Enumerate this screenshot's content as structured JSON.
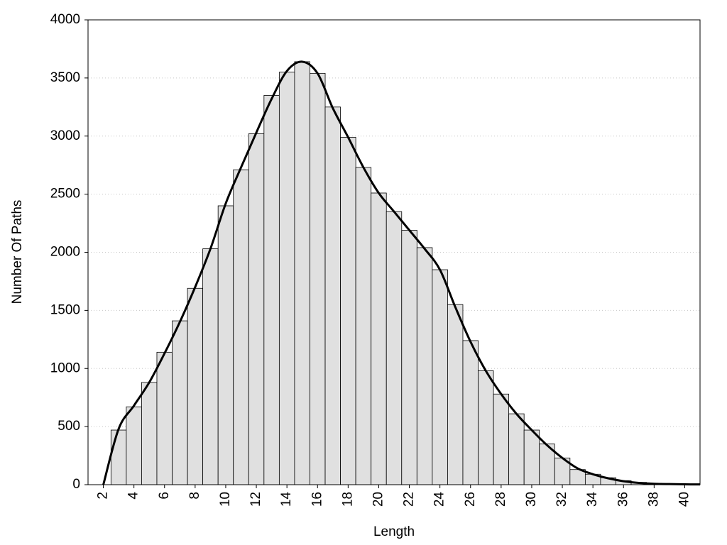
{
  "chart_data": {
    "type": "histogram",
    "x_label": "Length",
    "y_label": "Number Of Paths",
    "bins": [
      2.5,
      3.5,
      4.5,
      5.5,
      6.5,
      7.5,
      8.5,
      9.5,
      10.5,
      11.5,
      12.5,
      13.5,
      14.5,
      15.5,
      16.5,
      17.5,
      18.5,
      19.5,
      20.5,
      21.5,
      22.5,
      23.5,
      24.5,
      25.5,
      26.5,
      27.5,
      28.5,
      29.5,
      30.5,
      31.5,
      32.5,
      33.5,
      34.5,
      35.5,
      36.5,
      37.5,
      38.5,
      39.5,
      40.5
    ],
    "values": [
      470,
      670,
      880,
      1140,
      1410,
      1690,
      2030,
      2400,
      2710,
      3020,
      3350,
      3550,
      3640,
      3540,
      3250,
      2990,
      2730,
      2510,
      2350,
      2190,
      2040,
      1850,
      1550,
      1240,
      980,
      780,
      610,
      470,
      350,
      230,
      130,
      90,
      60,
      35,
      20,
      12,
      8,
      5
    ],
    "color": "#e0e0e0",
    "curve": {
      "x": [
        2,
        3,
        4,
        5,
        6,
        7,
        8,
        9,
        10,
        11,
        12,
        13,
        14,
        15,
        16,
        17,
        18,
        19,
        20,
        21,
        22,
        23,
        24,
        25,
        26,
        27,
        28,
        29,
        30,
        31,
        32,
        33,
        34,
        35,
        36,
        37,
        38,
        39,
        40,
        41
      ],
      "values": [
        0,
        480,
        680,
        880,
        1130,
        1400,
        1700,
        2030,
        2420,
        2730,
        3030,
        3320,
        3560,
        3640,
        3540,
        3240,
        2990,
        2730,
        2510,
        2350,
        2190,
        2030,
        1850,
        1530,
        1230,
        980,
        780,
        610,
        470,
        340,
        230,
        140,
        90,
        55,
        30,
        15,
        8,
        5,
        3,
        2
      ],
      "color": "#000000"
    },
    "xlim": [
      1,
      41
    ],
    "ylim": [
      0,
      4000
    ],
    "xticks": [
      2,
      4,
      6,
      8,
      10,
      12,
      14,
      16,
      18,
      20,
      22,
      24,
      26,
      28,
      30,
      32,
      34,
      36,
      38,
      40
    ],
    "yticks": [
      0,
      500,
      1000,
      1500,
      2000,
      2500,
      3000,
      3500,
      4000
    ],
    "grid": true
  }
}
